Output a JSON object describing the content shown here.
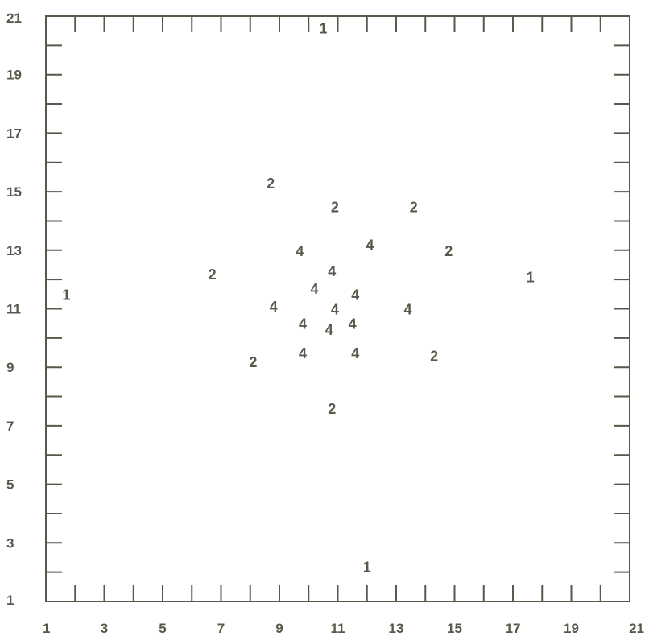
{
  "chart_data": {
    "type": "scatter",
    "title": "",
    "xlabel": "",
    "ylabel": "",
    "xlim": [
      1,
      21
    ],
    "ylim": [
      1,
      21
    ],
    "xticks": [
      "1",
      "3",
      "5",
      "7",
      "9",
      "11",
      "13",
      "15",
      "17",
      "19",
      "21"
    ],
    "yticks": [
      "1",
      "3",
      "5",
      "7",
      "9",
      "11",
      "13",
      "15",
      "17",
      "19",
      "21"
    ],
    "grid": false,
    "points": [
      {
        "x": 10.5,
        "y": 20.6,
        "label": "1"
      },
      {
        "x": 1.7,
        "y": 11.5,
        "label": "1"
      },
      {
        "x": 17.6,
        "y": 12.1,
        "label": "1"
      },
      {
        "x": 12.0,
        "y": 2.2,
        "label": "1"
      },
      {
        "x": 8.7,
        "y": 15.3,
        "label": "2"
      },
      {
        "x": 10.9,
        "y": 14.5,
        "label": "2"
      },
      {
        "x": 13.6,
        "y": 14.5,
        "label": "2"
      },
      {
        "x": 14.8,
        "y": 13.0,
        "label": "2"
      },
      {
        "x": 6.7,
        "y": 12.2,
        "label": "2"
      },
      {
        "x": 8.1,
        "y": 9.2,
        "label": "2"
      },
      {
        "x": 14.3,
        "y": 9.4,
        "label": "2"
      },
      {
        "x": 10.8,
        "y": 7.6,
        "label": "2"
      },
      {
        "x": 9.7,
        "y": 13.0,
        "label": "4"
      },
      {
        "x": 12.1,
        "y": 13.2,
        "label": "4"
      },
      {
        "x": 10.8,
        "y": 12.3,
        "label": "4"
      },
      {
        "x": 10.2,
        "y": 11.7,
        "label": "4"
      },
      {
        "x": 11.6,
        "y": 11.5,
        "label": "4"
      },
      {
        "x": 8.8,
        "y": 11.1,
        "label": "4"
      },
      {
        "x": 10.9,
        "y": 11.0,
        "label": "4"
      },
      {
        "x": 13.4,
        "y": 11.0,
        "label": "4"
      },
      {
        "x": 9.8,
        "y": 10.5,
        "label": "4"
      },
      {
        "x": 11.5,
        "y": 10.5,
        "label": "4"
      },
      {
        "x": 10.7,
        "y": 10.3,
        "label": "4"
      },
      {
        "x": 9.8,
        "y": 9.5,
        "label": "4"
      },
      {
        "x": 11.6,
        "y": 9.5,
        "label": "4"
      }
    ]
  }
}
